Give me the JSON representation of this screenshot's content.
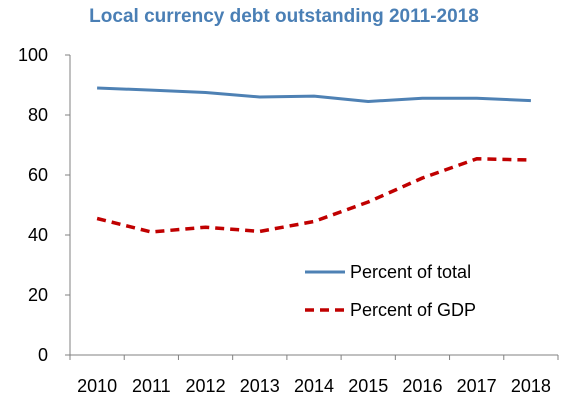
{
  "chart_data": {
    "type": "line",
    "title": "Local currency debt outstanding 2011-2018",
    "xlabel": "",
    "ylabel": "",
    "x": [
      "2010",
      "2011",
      "2012",
      "2013",
      "2014",
      "2015",
      "2016",
      "2017",
      "2018"
    ],
    "ylim": [
      0,
      100
    ],
    "yticks": [
      "0",
      "20",
      "40",
      "60",
      "80",
      "100"
    ],
    "grid": false,
    "legend_position": "lower-right",
    "series": [
      {
        "name": "Percent of total",
        "style": "solid",
        "color": "#4e81b4",
        "values": [
          89,
          88.3,
          87.5,
          86,
          86.3,
          84.5,
          85.6,
          85.6,
          84.8
        ]
      },
      {
        "name": "Percent of GDP",
        "style": "dashed",
        "color": "#c00000",
        "values": [
          45.5,
          41,
          42.6,
          41.2,
          44.5,
          51,
          59,
          65.4,
          65
        ]
      }
    ]
  }
}
